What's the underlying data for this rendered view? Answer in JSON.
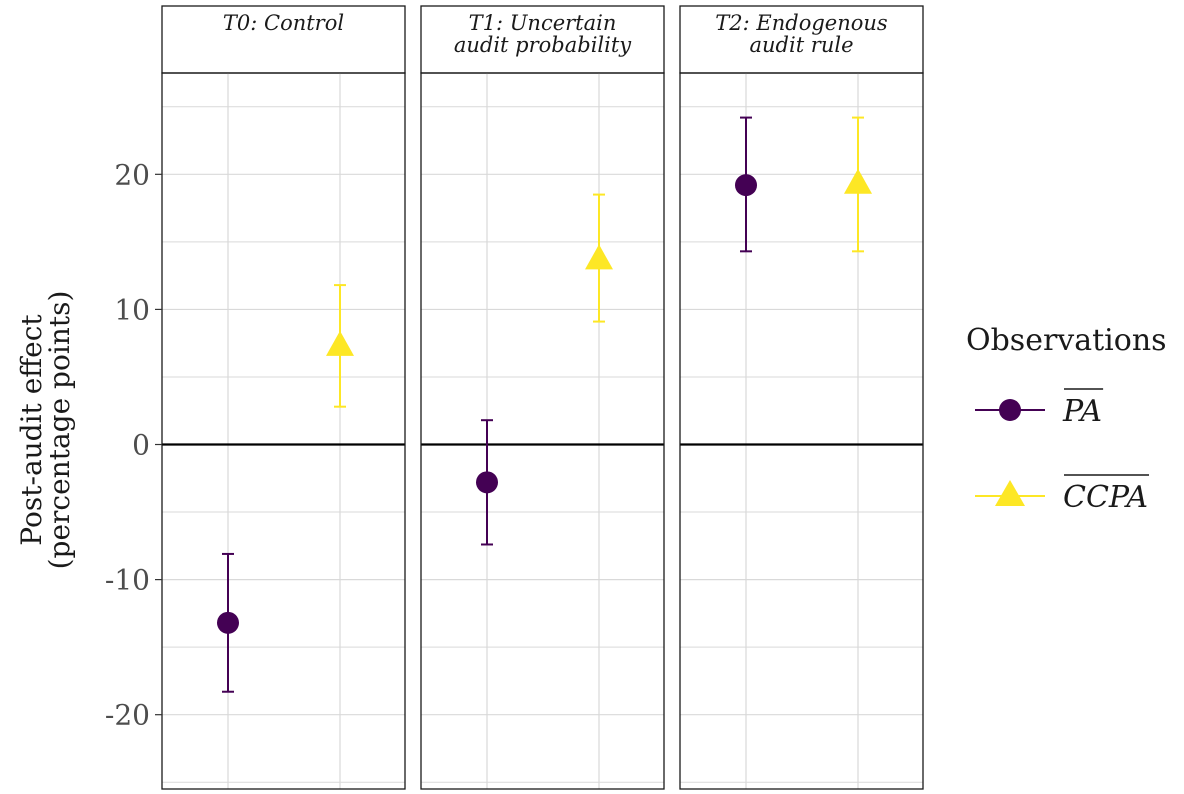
{
  "chart_data": {
    "type": "scatter",
    "facets": [
      {
        "label_lines": [
          "T0: Control"
        ]
      },
      {
        "label_lines": [
          "T1: Uncertain",
          "audit probability"
        ]
      },
      {
        "label_lines": [
          "T2: Endogenous",
          "audit rule"
        ]
      }
    ],
    "ylabel_lines": [
      "Post-audit effect",
      "(percentage points)"
    ],
    "ylim": [
      -25.5,
      27.5
    ],
    "yticks": [
      -20,
      -10,
      0,
      10,
      20
    ],
    "ytick_labels": [
      "-20",
      "-10",
      "0",
      "10",
      "20"
    ],
    "reference_line_y": 0,
    "grid": true,
    "legend_position": "right",
    "legend_title": "Observations",
    "series": [
      {
        "name": "PA",
        "color": "#440154",
        "marker": "circle",
        "points": [
          {
            "facet": 0,
            "y": -13.2,
            "lo": -18.3,
            "hi": -8.1
          },
          {
            "facet": 1,
            "y": -2.8,
            "lo": -7.4,
            "hi": 1.8
          },
          {
            "facet": 2,
            "y": 19.2,
            "lo": 14.3,
            "hi": 24.2
          }
        ]
      },
      {
        "name": "CCPA",
        "color": "#FDE725",
        "marker": "triangle",
        "points": [
          {
            "facet": 0,
            "y": 7.3,
            "lo": 2.8,
            "hi": 11.8
          },
          {
            "facet": 1,
            "y": 13.7,
            "lo": 9.1,
            "hi": 18.5
          },
          {
            "facet": 2,
            "y": 19.3,
            "lo": 14.3,
            "hi": 24.2
          }
        ]
      }
    ]
  }
}
